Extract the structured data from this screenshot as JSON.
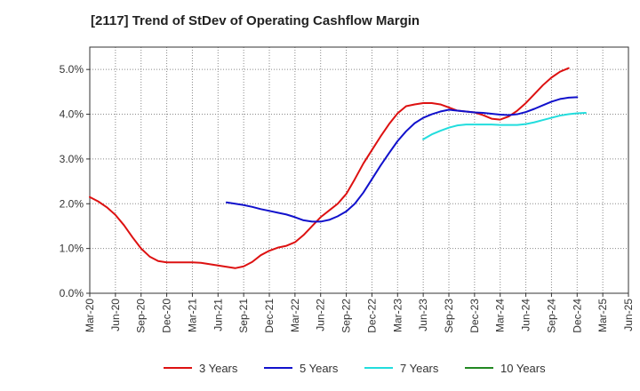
{
  "chart_data": {
    "type": "line",
    "title": "[2117]  Trend of StDev of Operating Cashflow Margin",
    "xlabel": "",
    "ylabel": "",
    "ylim": [
      0,
      5.5
    ],
    "y_ticks": [
      0,
      1,
      2,
      3,
      4,
      5
    ],
    "y_tick_labels": [
      "0.0%",
      "1.0%",
      "2.0%",
      "3.0%",
      "4.0%",
      "5.0%"
    ],
    "x_tick_labels": [
      "Mar-20",
      "Jun-20",
      "Sep-20",
      "Dec-20",
      "Mar-21",
      "Jun-21",
      "Sep-21",
      "Dec-21",
      "Mar-22",
      "Jun-22",
      "Sep-22",
      "Dec-22",
      "Mar-23",
      "Jun-23",
      "Sep-23",
      "Dec-23",
      "Mar-24",
      "Jun-24",
      "Sep-24",
      "Dec-24",
      "Mar-25",
      "Jun-25"
    ],
    "grid": true,
    "legend_position": "bottom",
    "series": [
      {
        "name": "3 Years",
        "color": "#dd1111",
        "start_index": 0,
        "values": [
          2.15,
          2.05,
          1.92,
          1.75,
          1.52,
          1.25,
          1.0,
          0.82,
          0.72,
          0.69,
          0.69,
          0.69,
          0.69,
          0.68,
          0.65,
          0.62,
          0.59,
          0.56,
          0.6,
          0.7,
          0.85,
          0.95,
          1.02,
          1.06,
          1.14,
          1.3,
          1.5,
          1.7,
          1.85,
          2.0,
          2.22,
          2.55,
          2.9,
          3.2,
          3.5,
          3.78,
          4.02,
          4.18,
          4.22,
          4.25,
          4.25,
          4.22,
          4.15,
          4.08,
          4.06,
          4.04,
          3.98,
          3.9,
          3.88,
          3.95,
          4.08,
          4.25,
          4.45,
          4.65,
          4.82,
          4.95,
          5.03
        ]
      },
      {
        "name": "5 Years",
        "color": "#1111cc",
        "start_index": 16,
        "values": [
          2.03,
          2.0,
          1.97,
          1.93,
          1.88,
          1.84,
          1.8,
          1.76,
          1.7,
          1.63,
          1.6,
          1.6,
          1.64,
          1.72,
          1.83,
          2.0,
          2.25,
          2.55,
          2.85,
          3.13,
          3.4,
          3.62,
          3.8,
          3.92,
          4.0,
          4.06,
          4.1,
          4.08,
          4.06,
          4.04,
          4.03,
          4.01,
          3.99,
          3.98,
          4.0,
          4.05,
          4.12,
          4.2,
          4.28,
          4.34,
          4.37,
          4.38
        ]
      },
      {
        "name": "7 Years",
        "color": "#22dddd",
        "start_index": 39,
        "values": [
          3.44,
          3.55,
          3.63,
          3.7,
          3.75,
          3.77,
          3.77,
          3.77,
          3.77,
          3.76,
          3.76,
          3.76,
          3.78,
          3.82,
          3.87,
          3.92,
          3.97,
          4.0,
          4.02,
          4.03
        ]
      },
      {
        "name": "10 Years",
        "color": "#228822",
        "start_index": 0,
        "values": []
      }
    ]
  }
}
